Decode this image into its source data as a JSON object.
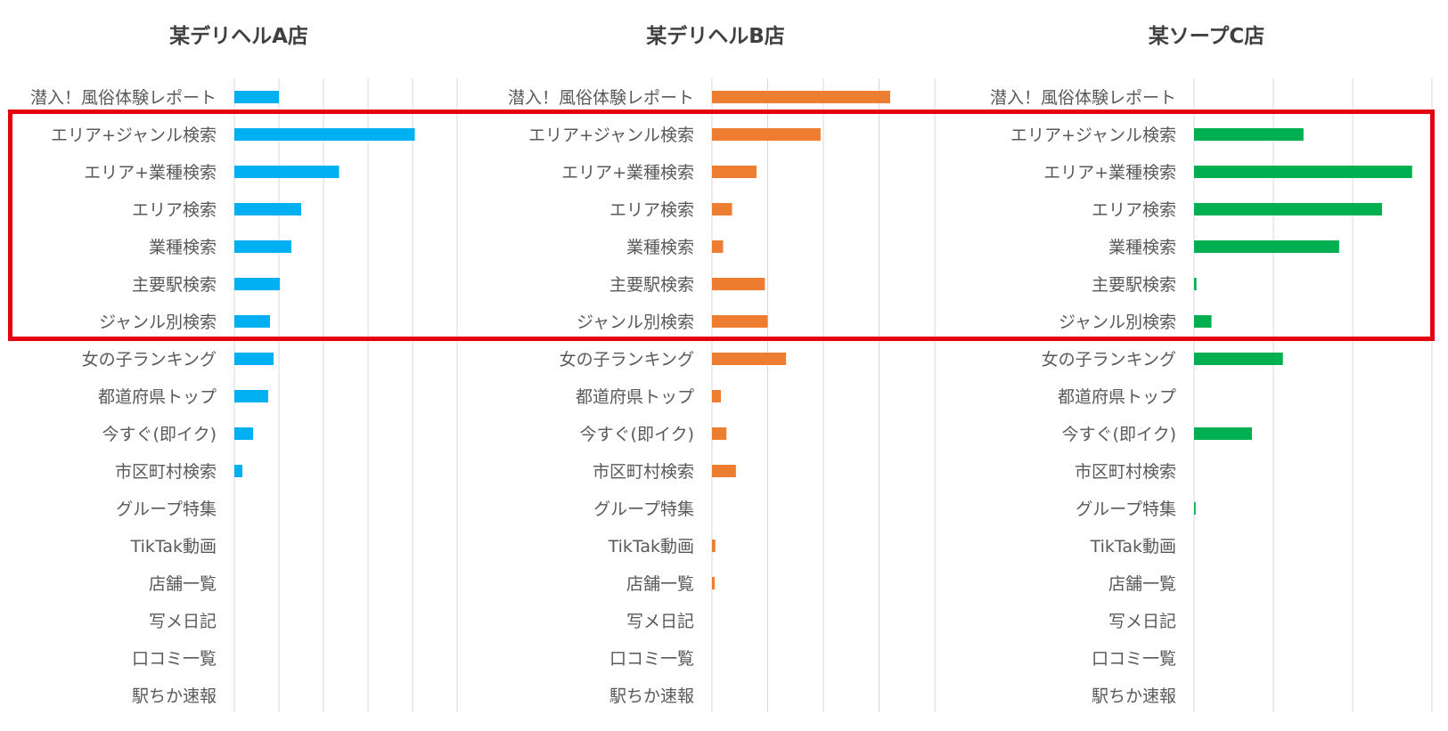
{
  "colors": {
    "A": "#00b0f0",
    "B": "#ed7d31",
    "C": "#00b050",
    "highlight": "#e5000f",
    "grid": "#d9d9d9",
    "label": "#595959",
    "title": "#404040"
  },
  "chart_data": [
    {
      "type": "bar",
      "orientation": "horizontal",
      "title": "某デリヘルA店",
      "categories": [
        "潜入！風俗体験レポート",
        "エリア+ジャンル検索",
        "エリア+業種検索",
        "エリア検索",
        "業種検索",
        "主要駅検索",
        "ジャンル別検索",
        "女の子ランキング",
        "都道府県トップ",
        "今すぐ(即イク)",
        "市区町村検索",
        "グループ特集",
        "TikTak動画",
        "店舗一覧",
        "写メ日記",
        "口コミ一覧",
        "駅ちか速報"
      ],
      "values": [
        10,
        40.5,
        23.5,
        15,
        12.8,
        10.2,
        8,
        8.8,
        7.6,
        4.2,
        1.8,
        0,
        0,
        0,
        0,
        0,
        0
      ],
      "xlim": [
        0,
        50
      ],
      "grid_step": 10,
      "color_key": "A"
    },
    {
      "type": "bar",
      "orientation": "horizontal",
      "title": "某デリヘルB店",
      "categories": [
        "潜入！風俗体験レポート",
        "エリア+ジャンル検索",
        "エリア+業種検索",
        "エリア検索",
        "業種検索",
        "主要駅検索",
        "ジャンル別検索",
        "女の子ランキング",
        "都道府県トップ",
        "今すぐ(即イク)",
        "市区町村検索",
        "グループ特集",
        "TikTak動画",
        "店舗一覧",
        "写メ日記",
        "口コミ一覧",
        "駅ちか速報"
      ],
      "values": [
        32,
        19.5,
        8,
        3.6,
        2,
        9.5,
        10,
        13.3,
        1.6,
        2.6,
        4.3,
        0,
        0.6,
        0.5,
        0,
        0,
        0
      ],
      "xlim": [
        0,
        40
      ],
      "grid_step": 10,
      "color_key": "B"
    },
    {
      "type": "bar",
      "orientation": "horizontal",
      "title": "某ソープC店",
      "categories": [
        "潜入！風俗体験レポート",
        "エリア+ジャンル検索",
        "エリア+業種検索",
        "エリア検索",
        "業種検索",
        "主要駅検索",
        "ジャンル別検索",
        "女の子ランキング",
        "都道府県トップ",
        "今すぐ(即イク)",
        "市区町村検索",
        "グループ特集",
        "TikTak動画",
        "店舗一覧",
        "写メ日記",
        "口コミ一覧",
        "駅ちか速報"
      ],
      "values": [
        0,
        13.8,
        27.5,
        23.7,
        18.3,
        0.3,
        2.2,
        11.2,
        0,
        7.3,
        0,
        0.2,
        0,
        0,
        0,
        0,
        0
      ],
      "xlim": [
        0,
        30
      ],
      "grid_step": 10,
      "color_key": "C"
    }
  ]
}
